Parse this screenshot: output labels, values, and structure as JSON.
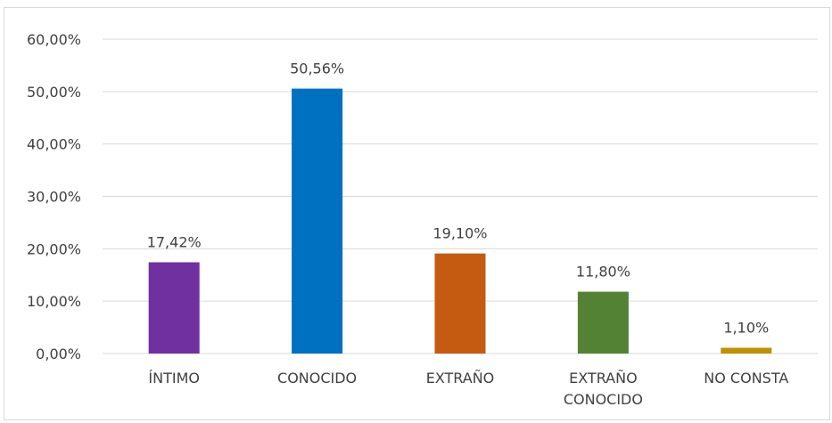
{
  "chart_data": {
    "type": "bar",
    "title": "",
    "xlabel": "",
    "ylabel": "",
    "categories": [
      [
        "ÍNTIMO"
      ],
      [
        "CONOCIDO"
      ],
      [
        "EXTRAÑO"
      ],
      [
        "EXTRAÑO",
        "CONOCIDO"
      ],
      [
        "NO CONSTA"
      ]
    ],
    "values": [
      17.42,
      50.56,
      19.1,
      11.8,
      1.1
    ],
    "value_labels": [
      "17,42%",
      "50,56%",
      "19,10%",
      "11,80%",
      "1,10%"
    ],
    "colors": [
      "#7030a0",
      "#0070c0",
      "#c55a11",
      "#548235",
      "#bf9000"
    ],
    "ylim": [
      0,
      60
    ],
    "yticks": [
      0,
      10,
      20,
      30,
      40,
      50,
      60
    ],
    "ytick_labels": [
      "0,00%",
      "10,00%",
      "20,00%",
      "30,00%",
      "40,00%",
      "50,00%",
      "60,00%"
    ],
    "grid": true,
    "gridline_color": "#d9d9d9",
    "legend": "none"
  }
}
